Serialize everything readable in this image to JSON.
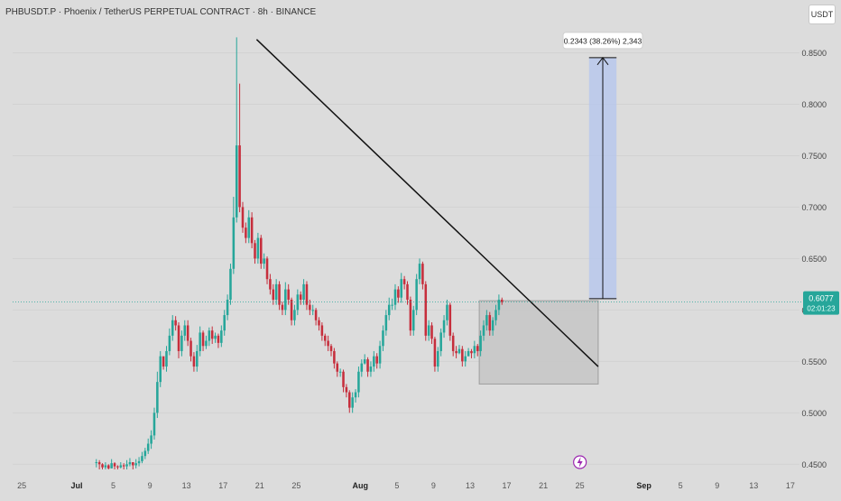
{
  "header": {
    "title": "PHBUSDT.P · Phoenix / TetherUS PERPETUAL CONTRACT · 8h · BINANCE",
    "currency_button": "USDT"
  },
  "price_badge": {
    "price": "0.6077",
    "countdown": "02:01:23",
    "color": "#26a69a"
  },
  "colors": {
    "up": "#26a69a",
    "down": "#c62e3c",
    "background": "#dcdcdc",
    "measure_fill": "#b8c8ec",
    "range_box_fill": "#c6c6c6",
    "trendline": "#111111",
    "event_icon": "#9c27b0"
  },
  "measure_label": "0.2343 (38.26%) 2,343",
  "event_icon": "lightning-icon",
  "chart_data": {
    "type": "candlestick",
    "title": "PHBUSDT.P · Phoenix / TetherUS PERPETUAL CONTRACT · 8h · BINANCE",
    "ylim": [
      0.445,
      0.875
    ],
    "y_ticks": [
      0.45,
      0.5,
      0.55,
      0.6,
      0.65,
      0.7,
      0.75,
      0.8,
      0.85
    ],
    "y_tick_labels": [
      "0.4500",
      "0.5000",
      "0.5500",
      "0.6000",
      "0.6500",
      "0.7000",
      "0.7500",
      "0.8000",
      "0.8500"
    ],
    "x_range": [
      "2025-06-24",
      "2025-09-18"
    ],
    "x_ticks": [
      {
        "date": "2025-06-25",
        "label": "25"
      },
      {
        "date": "2025-07-01",
        "label": "Jul"
      },
      {
        "date": "2025-07-05",
        "label": "5"
      },
      {
        "date": "2025-07-09",
        "label": "9"
      },
      {
        "date": "2025-07-13",
        "label": "13"
      },
      {
        "date": "2025-07-17",
        "label": "17"
      },
      {
        "date": "2025-07-21",
        "label": "21"
      },
      {
        "date": "2025-07-25",
        "label": "25"
      },
      {
        "date": "2025-08-01",
        "label": "Aug"
      },
      {
        "date": "2025-08-05",
        "label": "5"
      },
      {
        "date": "2025-08-09",
        "label": "9"
      },
      {
        "date": "2025-08-13",
        "label": "13"
      },
      {
        "date": "2025-08-17",
        "label": "17"
      },
      {
        "date": "2025-08-21",
        "label": "21"
      },
      {
        "date": "2025-08-25",
        "label": "25"
      },
      {
        "date": "2025-09-01",
        "label": "Sep"
      },
      {
        "date": "2025-09-05",
        "label": "5"
      },
      {
        "date": "2025-09-09",
        "label": "9"
      },
      {
        "date": "2025-09-13",
        "label": "13"
      },
      {
        "date": "2025-09-17",
        "label": "17"
      }
    ],
    "start_time": "2025-07-03 00:00",
    "interval_hours": 8,
    "first_close": 0.452,
    "closes": [
      0.452,
      0.45,
      0.447,
      0.449,
      0.446,
      0.451,
      0.448,
      0.447,
      0.449,
      0.448,
      0.45,
      0.452,
      0.449,
      0.451,
      0.453,
      0.458,
      0.463,
      0.47,
      0.478,
      0.5,
      0.53,
      0.555,
      0.545,
      0.56,
      0.575,
      0.59,
      0.585,
      0.56,
      0.575,
      0.585,
      0.57,
      0.555,
      0.545,
      0.56,
      0.578,
      0.565,
      0.57,
      0.58,
      0.572,
      0.575,
      0.568,
      0.58,
      0.595,
      0.61,
      0.64,
      0.69,
      0.76,
      0.7,
      0.68,
      0.67,
      0.69,
      0.665,
      0.65,
      0.67,
      0.645,
      0.65,
      0.63,
      0.62,
      0.61,
      0.625,
      0.605,
      0.6,
      0.62,
      0.61,
      0.59,
      0.6,
      0.615,
      0.61,
      0.625,
      0.605,
      0.6,
      0.6,
      0.59,
      0.585,
      0.575,
      0.57,
      0.565,
      0.56,
      0.548,
      0.54,
      0.54,
      0.525,
      0.52,
      0.505,
      0.515,
      0.52,
      0.54,
      0.548,
      0.552,
      0.54,
      0.545,
      0.555,
      0.548,
      0.565,
      0.58,
      0.595,
      0.605,
      0.605,
      0.62,
      0.612,
      0.63,
      0.625,
      0.61,
      0.58,
      0.6,
      0.63,
      0.645,
      0.625,
      0.575,
      0.585,
      0.572,
      0.545,
      0.56,
      0.578,
      0.59,
      0.605,
      0.575,
      0.56,
      0.558,
      0.562,
      0.55,
      0.555,
      0.56,
      0.558,
      0.565,
      0.56,
      0.575,
      0.585,
      0.595,
      0.58,
      0.59,
      0.6,
      0.61,
      0.6077
    ],
    "highs": [
      0.455,
      0.454,
      0.451,
      0.452,
      0.45,
      0.455,
      0.452,
      0.449,
      0.452,
      0.451,
      0.454,
      0.456,
      0.452,
      0.455,
      0.457,
      0.462,
      0.466,
      0.475,
      0.483,
      0.505,
      0.54,
      0.56,
      0.553,
      0.565,
      0.582,
      0.595,
      0.594,
      0.588,
      0.58,
      0.59,
      0.59,
      0.573,
      0.559,
      0.566,
      0.584,
      0.58,
      0.575,
      0.583,
      0.584,
      0.578,
      0.577,
      0.585,
      0.6,
      0.615,
      0.645,
      0.71,
      0.865,
      0.82,
      0.705,
      0.685,
      0.697,
      0.695,
      0.668,
      0.675,
      0.673,
      0.655,
      0.652,
      0.635,
      0.625,
      0.63,
      0.628,
      0.608,
      0.627,
      0.625,
      0.612,
      0.605,
      0.62,
      0.618,
      0.63,
      0.628,
      0.61,
      0.605,
      0.602,
      0.593,
      0.588,
      0.577,
      0.575,
      0.567,
      0.563,
      0.55,
      0.543,
      0.542,
      0.528,
      0.522,
      0.52,
      0.523,
      0.545,
      0.552,
      0.557,
      0.554,
      0.55,
      0.56,
      0.558,
      0.57,
      0.585,
      0.6,
      0.612,
      0.611,
      0.625,
      0.623,
      0.636,
      0.633,
      0.628,
      0.613,
      0.604,
      0.635,
      0.65,
      0.647,
      0.628,
      0.59,
      0.588,
      0.574,
      0.564,
      0.582,
      0.595,
      0.61,
      0.607,
      0.578,
      0.565,
      0.566,
      0.565,
      0.56,
      0.563,
      0.562,
      0.57,
      0.567,
      0.58,
      0.59,
      0.6,
      0.598,
      0.593,
      0.605,
      0.615,
      0.612
    ],
    "lows": [
      0.447,
      0.445,
      0.445,
      0.445,
      0.445,
      0.446,
      0.445,
      0.445,
      0.446,
      0.445,
      0.445,
      0.448,
      0.445,
      0.446,
      0.448,
      0.451,
      0.455,
      0.46,
      0.465,
      0.474,
      0.495,
      0.525,
      0.542,
      0.54,
      0.556,
      0.57,
      0.58,
      0.553,
      0.555,
      0.57,
      0.565,
      0.55,
      0.54,
      0.54,
      0.555,
      0.56,
      0.562,
      0.565,
      0.567,
      0.568,
      0.563,
      0.564,
      0.575,
      0.59,
      0.605,
      0.635,
      0.685,
      0.695,
      0.675,
      0.665,
      0.665,
      0.66,
      0.645,
      0.645,
      0.64,
      0.64,
      0.625,
      0.615,
      0.605,
      0.605,
      0.6,
      0.595,
      0.595,
      0.605,
      0.585,
      0.585,
      0.595,
      0.605,
      0.605,
      0.6,
      0.595,
      0.595,
      0.585,
      0.58,
      0.57,
      0.565,
      0.56,
      0.555,
      0.543,
      0.535,
      0.535,
      0.52,
      0.515,
      0.5,
      0.5,
      0.51,
      0.515,
      0.535,
      0.547,
      0.535,
      0.535,
      0.54,
      0.543,
      0.543,
      0.56,
      0.575,
      0.59,
      0.6,
      0.6,
      0.607,
      0.607,
      0.62,
      0.605,
      0.575,
      0.575,
      0.595,
      0.625,
      0.62,
      0.57,
      0.57,
      0.567,
      0.54,
      0.54,
      0.555,
      0.573,
      0.585,
      0.57,
      0.555,
      0.553,
      0.557,
      0.545,
      0.545,
      0.555,
      0.553,
      0.553,
      0.555,
      0.555,
      0.57,
      0.58,
      0.575,
      0.575,
      0.585,
      0.595,
      0.605
    ],
    "trendline": {
      "from": {
        "date": "2025-07-20 16:00",
        "price": 0.863
      },
      "to": {
        "date": "2025-08-27",
        "price": 0.545
      }
    },
    "range_box": {
      "from_date": "2025-08-14",
      "to_date": "2025-08-27",
      "top": 0.609,
      "bottom": 0.528
    },
    "measure": {
      "from_date": "2025-08-26",
      "to_date": "2025-08-29",
      "bottom": 0.611,
      "top": 0.8453,
      "label": "0.2343 (38.26%) 2,343"
    },
    "event_date": "2025-08-25"
  }
}
